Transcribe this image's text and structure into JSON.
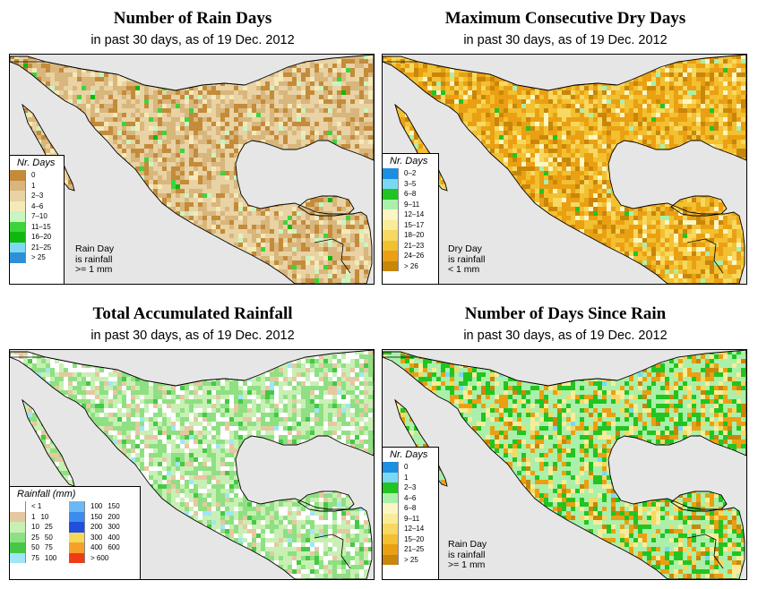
{
  "colors": {
    "ocean": "#e6e6e6",
    "border": "#000000"
  },
  "panels": [
    {
      "title": "Number of Rain Days",
      "subtitle": "in past 30 days, as of  19 Dec. 2012",
      "legend_title": "Nr. Days",
      "legend": [
        {
          "label": "0",
          "color": "#c48b3a"
        },
        {
          "label": "1",
          "color": "#d8b67c"
        },
        {
          "label": "2–3",
          "color": "#e9d2a4"
        },
        {
          "label": "4–6",
          "color": "#f4eab8"
        },
        {
          "label": "7–10",
          "color": "#c8f5c0"
        },
        {
          "label": "11–15",
          "color": "#3cd43c"
        },
        {
          "label": "16–20",
          "color": "#0fb80f"
        },
        {
          "label": "21–25",
          "color": "#7ed8f0"
        },
        {
          "label": "> 25",
          "color": "#2e8fd8"
        }
      ],
      "note": [
        "Rain Day",
        "is rainfall",
        ">= 1 mm"
      ]
    },
    {
      "title": "Maximum Consecutive Dry Days",
      "subtitle": "in past 30 days, as of  19 Dec. 2012",
      "legend_title": "Nr. Days",
      "legend": [
        {
          "label": "0–2",
          "color": "#1c8fe0"
        },
        {
          "label": "3–5",
          "color": "#7ad8f5"
        },
        {
          "label": "6–8",
          "color": "#22c422"
        },
        {
          "label": "9–11",
          "color": "#aaf0aa"
        },
        {
          "label": "12–14",
          "color": "#fbf6c4"
        },
        {
          "label": "15–17",
          "color": "#f9ec98"
        },
        {
          "label": "18–20",
          "color": "#f7d860"
        },
        {
          "label": "21–23",
          "color": "#f2c030"
        },
        {
          "label": "24–26",
          "color": "#eaa012"
        },
        {
          "label": "> 26",
          "color": "#c8860a"
        }
      ],
      "note": [
        "Dry Day",
        "is rainfall",
        "< 1 mm"
      ]
    },
    {
      "title": "Total Accumulated Rainfall",
      "subtitle": "in past 30 days, as of  19 Dec. 2012",
      "legend_title": "Rainfall (mm)",
      "legend": [
        {
          "lo": "< 1",
          "hi": "",
          "color": "#ffffff"
        },
        {
          "lo": "1",
          "hi": "10",
          "color": "#e6c8a0"
        },
        {
          "lo": "10",
          "hi": "25",
          "color": "#c8f0b4"
        },
        {
          "lo": "25",
          "hi": "50",
          "color": "#8ee082"
        },
        {
          "lo": "50",
          "hi": "75",
          "color": "#46c846"
        },
        {
          "lo": "75",
          "hi": "100",
          "color": "#a0e6f5"
        },
        {
          "lo": "100",
          "hi": "150",
          "color": "#6ab8f5"
        },
        {
          "lo": "150",
          "hi": "200",
          "color": "#3c8cf0"
        },
        {
          "lo": "200",
          "hi": "300",
          "color": "#1e50dc"
        },
        {
          "lo": "300",
          "hi": "400",
          "color": "#f5d85a"
        },
        {
          "lo": "400",
          "hi": "600",
          "color": "#f5a028"
        },
        {
          "lo": "> 600",
          "hi": "",
          "color": "#f03c14"
        }
      ]
    },
    {
      "title": "Number of Days Since Rain",
      "subtitle": "in past 30 days, as of  19 Dec. 2012",
      "legend_title": "Nr. Days",
      "legend": [
        {
          "label": "0",
          "color": "#1c8fe0"
        },
        {
          "label": "1",
          "color": "#7ad8f5"
        },
        {
          "label": "2–3",
          "color": "#22c422"
        },
        {
          "label": "4–6",
          "color": "#aaf0aa"
        },
        {
          "label": "6–8",
          "color": "#fbf6c4"
        },
        {
          "label": "9–11",
          "color": "#f9ec98"
        },
        {
          "label": "12–14",
          "color": "#f7d860"
        },
        {
          "label": "15–20",
          "color": "#f2c030"
        },
        {
          "label": "21–25",
          "color": "#eaa012"
        },
        {
          "label": "> 25",
          "color": "#c8860a"
        }
      ],
      "note": [
        "Rain Day",
        "is rainfall",
        ">= 1 mm"
      ]
    }
  ]
}
